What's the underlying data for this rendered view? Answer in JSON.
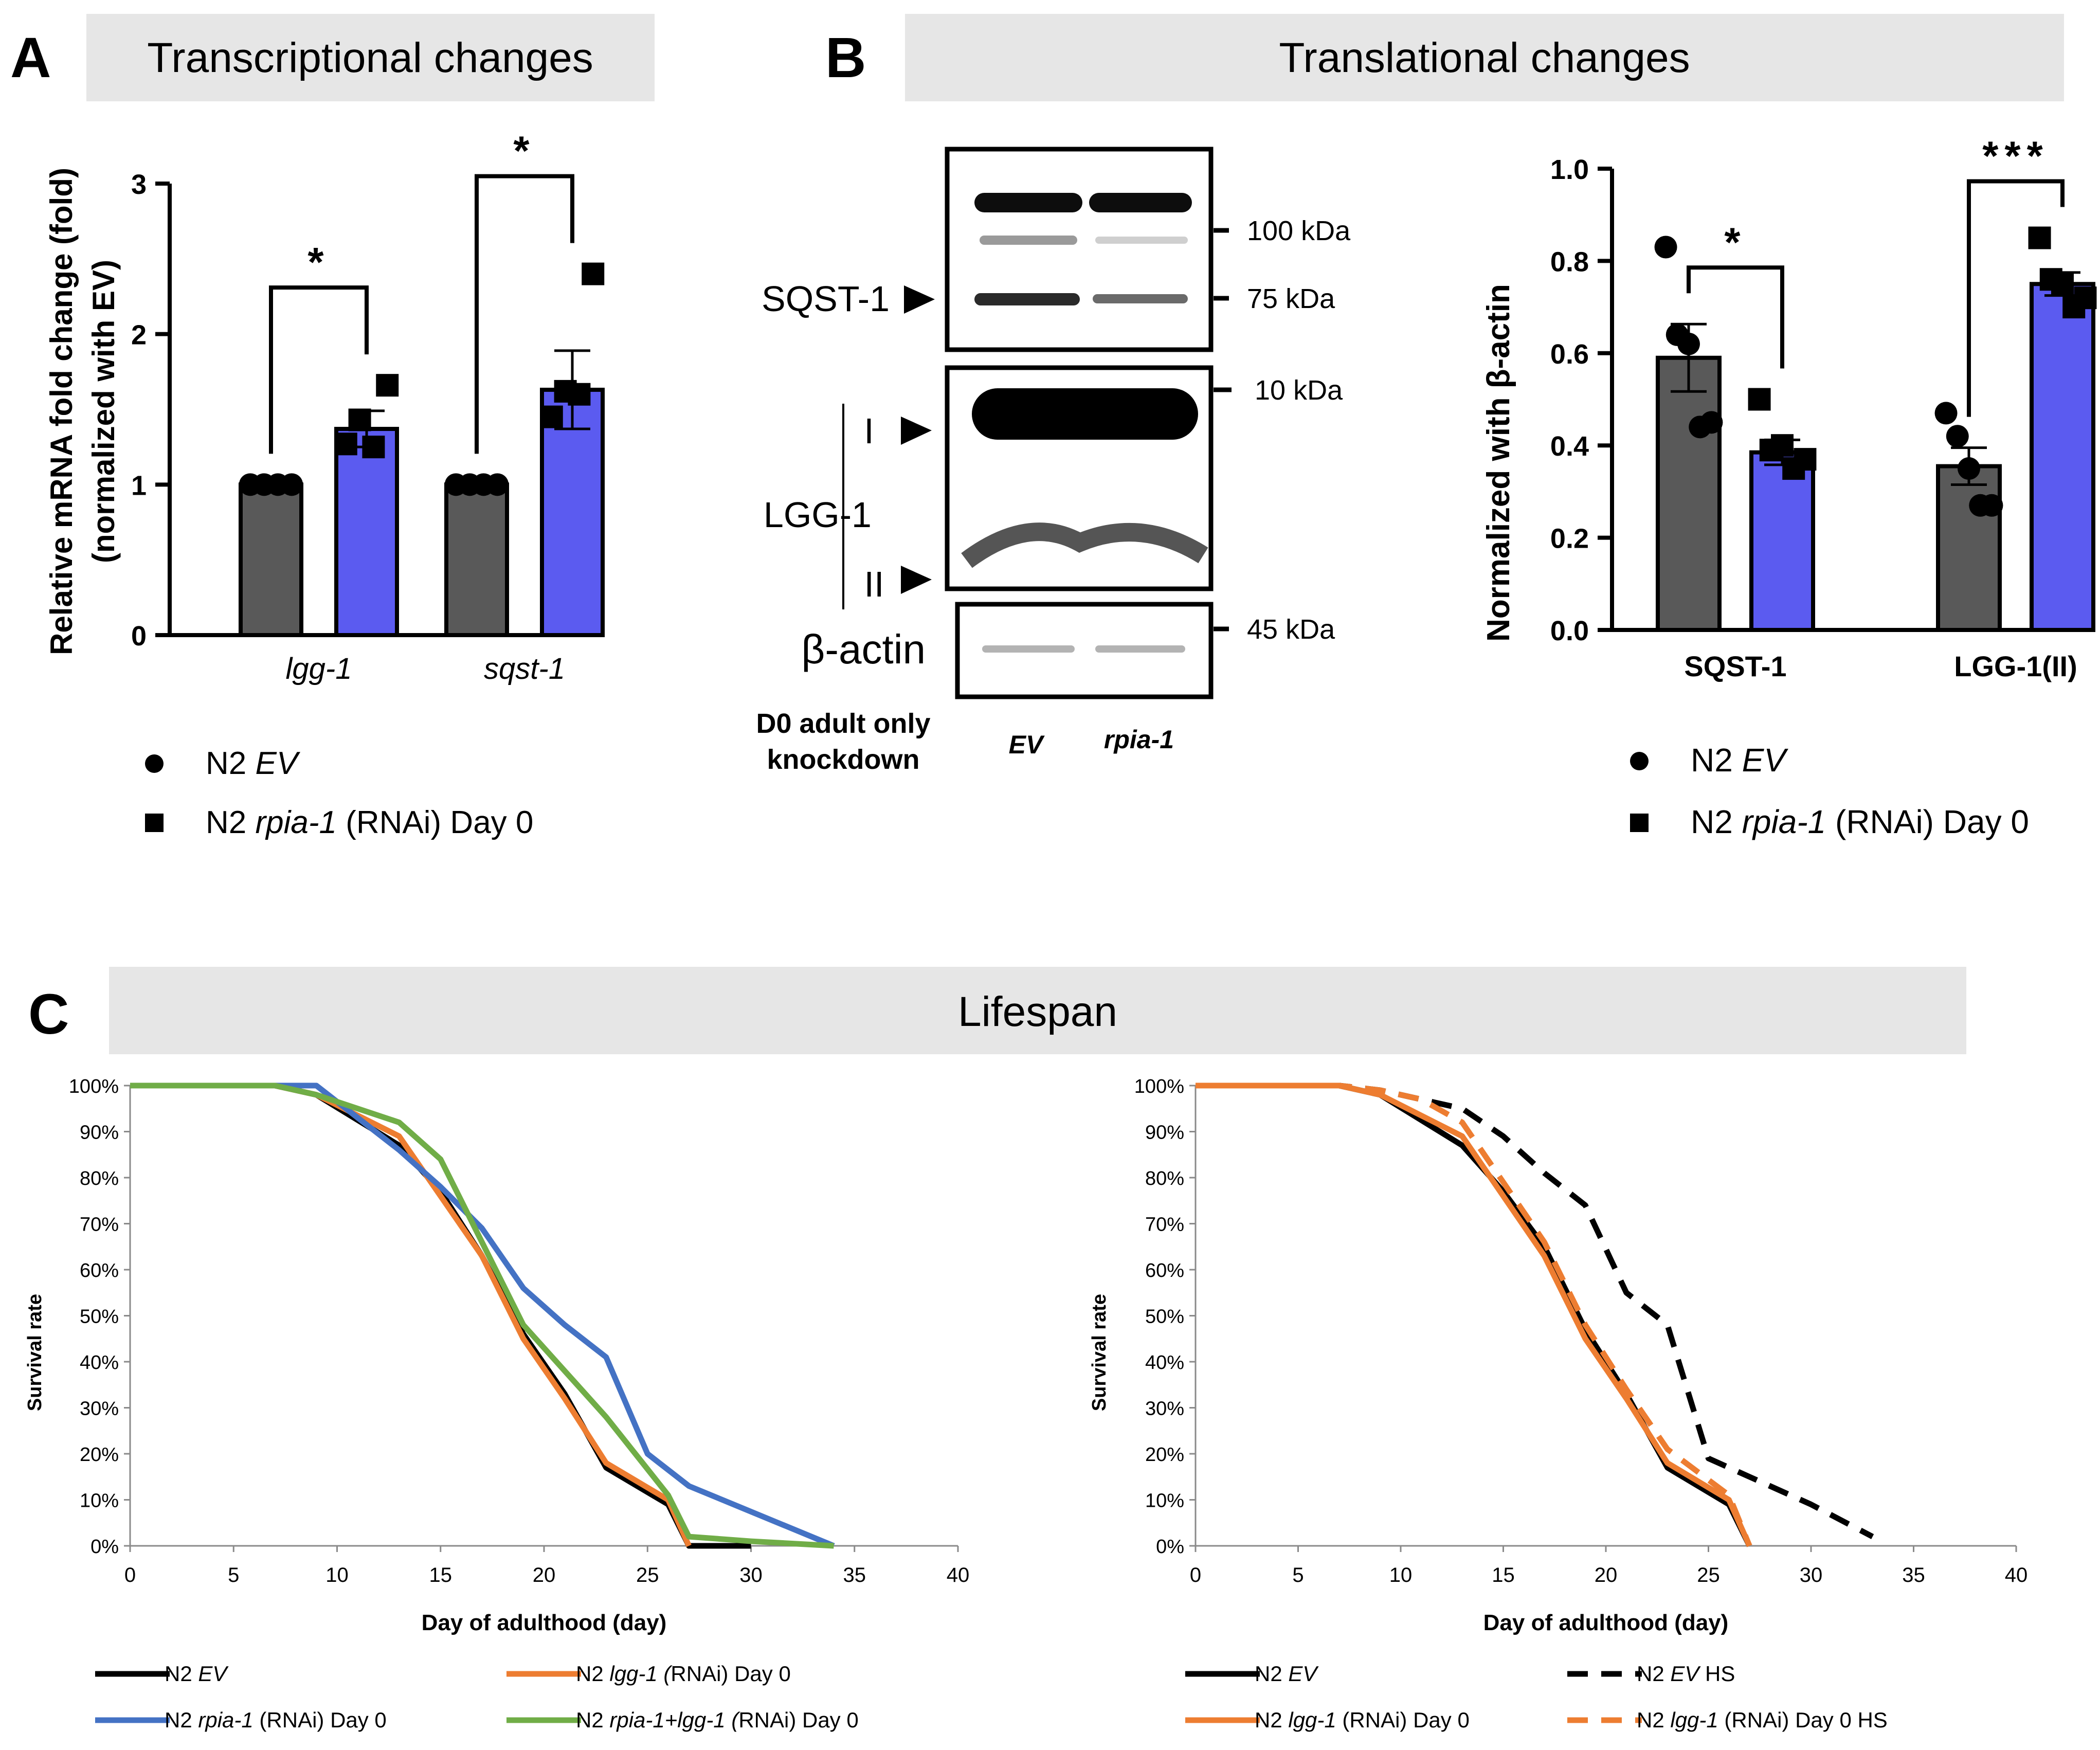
{
  "panels": {
    "A": {
      "letter": "A",
      "header": "Transcriptional changes"
    },
    "B": {
      "letter": "B",
      "header": "Translational changes"
    },
    "C": {
      "letter": "C",
      "header": "Lifespan"
    }
  },
  "colors": {
    "grey_bar": "#595959",
    "blue_bar": "#5B5BF0",
    "header_bg": "#E6E6E6",
    "black_line": "#000000",
    "orange_line": "#ED7D31",
    "blue_line": "#4472C4",
    "green_line": "#70AD47"
  },
  "blot": {
    "markers": [
      "100 kDa",
      "75 kDa",
      "10 kDa",
      "45 kDa"
    ],
    "labels": {
      "sqst1": "SQST-1",
      "lgg1": "LGG-1",
      "form_I": "I",
      "form_II": "II",
      "actin": "β-actin"
    },
    "condition_line1": "D0 adult only",
    "condition_line2": "knockdown",
    "lanes": [
      "EV",
      "rpia-1"
    ]
  },
  "legends": {
    "A": [
      {
        "marker": "circle",
        "prefix": "N2 ",
        "italic": "EV",
        "suffix": ""
      },
      {
        "marker": "square",
        "prefix": "N2 ",
        "italic": "rpia-1",
        "suffix": " (RNAi) Day 0"
      }
    ],
    "B": [
      {
        "marker": "circle",
        "prefix": "N2 ",
        "italic": "EV",
        "suffix": ""
      },
      {
        "marker": "square",
        "prefix": "N2 ",
        "italic": "rpia-1",
        "suffix": " (RNAi) Day 0"
      }
    ],
    "C_left": [
      {
        "color": "#000000",
        "dash": false,
        "prefix": "N2  ",
        "italic": "EV",
        "suffix": ""
      },
      {
        "color": "#ED7D31",
        "dash": false,
        "prefix": "N2  ",
        "italic": "lgg-1 (",
        "suffix": "RNAi) Day 0"
      },
      {
        "color": "#4472C4",
        "dash": false,
        "prefix": "N2  ",
        "italic": "rpia-1",
        "suffix": " (RNAi) Day 0"
      },
      {
        "color": "#70AD47",
        "dash": false,
        "prefix": "N2  ",
        "italic": "rpia-1+lgg-1 (",
        "suffix": "RNAi) Day 0"
      }
    ],
    "C_right": [
      {
        "color": "#000000",
        "dash": false,
        "prefix": "N2  ",
        "italic": "EV",
        "suffix": ""
      },
      {
        "color": "#000000",
        "dash": true,
        "prefix": "N2  ",
        "italic": "EV",
        "suffix": " HS"
      },
      {
        "color": "#ED7D31",
        "dash": false,
        "prefix": "N2  ",
        "italic": "lgg-1",
        "suffix": " (RNAi) Day 0"
      },
      {
        "color": "#ED7D31",
        "dash": true,
        "prefix": "N2  ",
        "italic": "lgg-1",
        "suffix": " (RNAi) Day 0 HS"
      }
    ]
  },
  "chart_data": [
    {
      "id": "A",
      "type": "bar",
      "ylabel_line1": "Relative mRNA fold change (fold)",
      "ylabel_line2": "(normalized with EV)",
      "ylim": [
        0,
        3
      ],
      "yticks": [
        "0",
        "1",
        "2",
        "3"
      ],
      "categories": [
        "lgg-1",
        "sqst-1"
      ],
      "series": [
        {
          "name": "N2 EV",
          "values": [
            1.0,
            1.0
          ],
          "sem": [
            0,
            0
          ],
          "points": [
            [
              1,
              1,
              1,
              1
            ],
            [
              1,
              1,
              1,
              1
            ]
          ]
        },
        {
          "name": "N2 rpia-1 (RNAi) Day 0",
          "values": [
            1.37,
            1.63
          ],
          "sem": [
            0.12,
            0.26
          ],
          "points": [
            [
              1.27,
              1.43,
              1.25,
              1.66
            ],
            [
              1.45,
              1.62,
              1.6,
              2.4
            ]
          ]
        }
      ],
      "significance": [
        "*",
        "*"
      ]
    },
    {
      "id": "B",
      "type": "bar",
      "ylabel": "Normalized with β-actin",
      "ylim": [
        0,
        1.0
      ],
      "yticks": [
        "0.0",
        "0.2",
        "0.4",
        "0.6",
        "0.8",
        "1.0"
      ],
      "categories": [
        "SQST-1",
        "LGG-1(II)"
      ],
      "series": [
        {
          "name": "N2 EV",
          "values": [
            0.59,
            0.355
          ],
          "sem": [
            0.073,
            0.04
          ],
          "points": [
            [
              0.83,
              0.64,
              0.62,
              0.44,
              0.45
            ],
            [
              0.47,
              0.42,
              0.35,
              0.27,
              0.27
            ]
          ]
        },
        {
          "name": "N2 rpia-1 (RNAi) Day 0",
          "values": [
            0.385,
            0.75
          ],
          "sem": [
            0.027,
            0.025
          ],
          "points": [
            [
              0.5,
              0.39,
              0.4,
              0.35,
              0.37
            ],
            [
              0.85,
              0.76,
              0.75,
              0.7,
              0.72
            ]
          ]
        }
      ],
      "significance": [
        "*",
        "***"
      ]
    },
    {
      "id": "C_left",
      "type": "line",
      "xlabel": "Day of adulthood  (day)",
      "ylabel": "Survival rate",
      "xlim": [
        0,
        40
      ],
      "ylim": [
        0,
        100
      ],
      "xticks": [
        "0",
        "5",
        "10",
        "15",
        "20",
        "25",
        "30",
        "35",
        "40"
      ],
      "yticks": [
        "0%",
        "10%",
        "20%",
        "30%",
        "40%",
        "50%",
        "60%",
        "70%",
        "80%",
        "90%",
        "100%"
      ],
      "series": [
        {
          "name": "N2 EV",
          "color": "#000000",
          "dash": false,
          "x": [
            0,
            7,
            9,
            13,
            15,
            17,
            19,
            21,
            23,
            26,
            27,
            30
          ],
          "y": [
            100,
            100,
            98,
            87,
            77,
            63,
            46,
            33,
            17,
            9,
            0,
            0
          ]
        },
        {
          "name": "N2 lgg-1 (RNAi) Day 0",
          "color": "#ED7D31",
          "dash": false,
          "x": [
            0,
            7,
            9,
            13,
            15,
            17,
            19,
            21,
            23,
            26,
            27
          ],
          "y": [
            100,
            100,
            98,
            89,
            76,
            63,
            45,
            32,
            18,
            10,
            0
          ]
        },
        {
          "name": "N2 rpia-1 (RNAi) Day 0",
          "color": "#4472C4",
          "dash": false,
          "x": [
            0,
            7,
            9,
            11,
            13,
            15,
            17,
            19,
            21,
            23,
            25,
            27,
            34
          ],
          "y": [
            100,
            100,
            100,
            93,
            86,
            78,
            69,
            56,
            48,
            41,
            20,
            13,
            0
          ]
        },
        {
          "name": "N2 rpia-1+lgg-1 (RNAi) Day 0",
          "color": "#70AD47",
          "dash": false,
          "x": [
            0,
            7,
            9,
            13,
            15,
            17,
            19,
            21,
            23,
            26,
            27,
            30,
            34
          ],
          "y": [
            100,
            100,
            98,
            92,
            84,
            66,
            48,
            38,
            28,
            11,
            2,
            1,
            0
          ]
        }
      ]
    },
    {
      "id": "C_right",
      "type": "line",
      "xlabel": "Day of adulthood  (day)",
      "ylabel": "Survival rate",
      "xlim": [
        0,
        40
      ],
      "ylim": [
        0,
        100
      ],
      "xticks": [
        "0",
        "5",
        "10",
        "15",
        "20",
        "25",
        "30",
        "35",
        "40"
      ],
      "yticks": [
        "0%",
        "10%",
        "20%",
        "30%",
        "40%",
        "50%",
        "60%",
        "70%",
        "80%",
        "90%",
        "100%"
      ],
      "series": [
        {
          "name": "N2 EV",
          "color": "#000000",
          "dash": false,
          "x": [
            0,
            7,
            9,
            13,
            15,
            17,
            19,
            21,
            23,
            26,
            27
          ],
          "y": [
            100,
            100,
            98,
            87,
            77,
            65,
            47,
            33,
            17,
            9,
            0
          ]
        },
        {
          "name": "N2 EV HS",
          "color": "#000000",
          "dash": true,
          "x": [
            0,
            7,
            9,
            11,
            13,
            15,
            17,
            19,
            21,
            23,
            25,
            27,
            30,
            33
          ],
          "y": [
            100,
            100,
            99,
            97,
            95,
            89,
            81,
            74,
            55,
            48,
            19,
            15,
            9,
            2
          ]
        },
        {
          "name": "N2 lgg-1 (RNAi) Day 0",
          "color": "#ED7D31",
          "dash": false,
          "x": [
            0,
            7,
            9,
            13,
            15,
            17,
            19,
            21,
            23,
            26,
            27
          ],
          "y": [
            100,
            100,
            98,
            89,
            76,
            63,
            45,
            32,
            18,
            10,
            0
          ]
        },
        {
          "name": "N2 lgg-1 (RNAi) Day 0 HS",
          "color": "#ED7D31",
          "dash": true,
          "x": [
            0,
            7,
            9,
            11,
            13,
            15,
            17,
            19,
            21,
            23,
            26,
            27
          ],
          "y": [
            100,
            100,
            99,
            97,
            92,
            79,
            66,
            48,
            34,
            21,
            11,
            0
          ]
        }
      ]
    }
  ]
}
